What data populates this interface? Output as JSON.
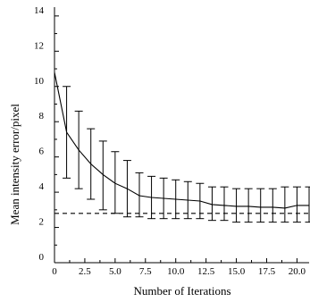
{
  "chart_data": {
    "type": "line",
    "xlabel": "Number of Iterations",
    "ylabel": "Mean intensity error/pixel",
    "xlim": [
      0,
      21
    ],
    "ylim": [
      0,
      14.5
    ],
    "x_ticks": [
      0,
      2.5,
      5.0,
      7.5,
      10.0,
      12.5,
      15.0,
      17.5,
      20.0
    ],
    "x_tick_labels": [
      "0",
      "2.5",
      "5.0",
      "7.5",
      "10.0",
      "12.5",
      "15.0",
      "17.5",
      "20.0"
    ],
    "y_ticks": [
      0,
      2,
      4,
      6,
      8,
      10,
      12,
      14
    ],
    "y_tick_labels": [
      "0",
      "2",
      "4",
      "6",
      "8",
      "10",
      "12",
      "14"
    ],
    "grid": false,
    "series": [
      {
        "style": "solid",
        "x": [
          0,
          1,
          2,
          3,
          4,
          5,
          6,
          7,
          8,
          9,
          10,
          11,
          12,
          13,
          14,
          15,
          16,
          17,
          18,
          19,
          20,
          21
        ],
        "y": [
          10.8,
          7.4,
          6.4,
          5.6,
          5.0,
          4.5,
          4.2,
          3.8,
          3.7,
          3.65,
          3.6,
          3.55,
          3.5,
          3.3,
          3.25,
          3.2,
          3.2,
          3.15,
          3.15,
          3.1,
          3.25,
          3.25
        ],
        "error_bars": [
          null,
          {
            "low": 4.8,
            "high": 10.0
          },
          {
            "low": 4.2,
            "high": 8.6
          },
          {
            "low": 3.6,
            "high": 7.6
          },
          {
            "low": 3.0,
            "high": 6.9
          },
          {
            "low": 2.8,
            "high": 6.3
          },
          {
            "low": 2.6,
            "high": 5.8
          },
          {
            "low": 2.6,
            "high": 5.1
          },
          {
            "low": 2.5,
            "high": 4.9
          },
          {
            "low": 2.5,
            "high": 4.8
          },
          {
            "low": 2.5,
            "high": 4.7
          },
          {
            "low": 2.5,
            "high": 4.6
          },
          {
            "low": 2.5,
            "high": 4.5
          },
          {
            "low": 2.4,
            "high": 4.3
          },
          {
            "low": 2.4,
            "high": 4.3
          },
          {
            "low": 2.3,
            "high": 4.2
          },
          {
            "low": 2.3,
            "high": 4.2
          },
          {
            "low": 2.3,
            "high": 4.2
          },
          {
            "low": 2.3,
            "high": 4.2
          },
          {
            "low": 2.3,
            "high": 4.3
          },
          {
            "low": 2.3,
            "high": 4.3
          },
          {
            "low": 2.3,
            "high": 4.3
          }
        ]
      },
      {
        "style": "dashed",
        "x": [
          0,
          21
        ],
        "y": [
          2.8,
          2.8
        ]
      }
    ]
  }
}
